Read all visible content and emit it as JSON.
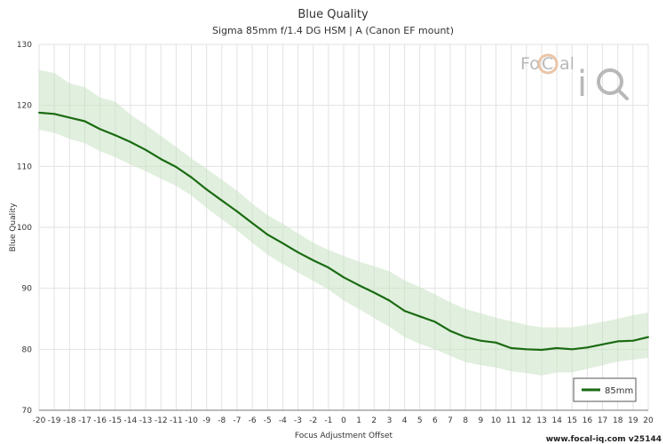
{
  "chart_data": {
    "type": "line",
    "title": "Blue Quality",
    "subtitle": "Sigma 85mm f/1.4 DG HSM | A (Canon EF mount)",
    "xlabel": "Focus Adjustment Offset",
    "ylabel": "Blue Quality",
    "xlim": [
      -20,
      20
    ],
    "ylim": [
      70,
      130
    ],
    "yticks": [
      70,
      80,
      90,
      100,
      110,
      120,
      130
    ],
    "grid": true,
    "legend_position": "bottom-right",
    "x": [
      -20,
      -19,
      -18,
      -17,
      -16,
      -15,
      -14,
      -13,
      -12,
      -11,
      -10,
      -9,
      -8,
      -7,
      -6,
      -5,
      -4,
      -3,
      -2,
      -1,
      0,
      1,
      2,
      3,
      4,
      5,
      6,
      7,
      8,
      9,
      10,
      11,
      12,
      13,
      14,
      15,
      16,
      17,
      18,
      19,
      20
    ],
    "series": [
      {
        "name": "85mm",
        "color": "#1a6b12",
        "band_color": "#c9e2c2",
        "values": [
          118.8,
          118.6,
          118.0,
          117.4,
          116.1,
          115.1,
          114.0,
          112.7,
          111.2,
          109.9,
          108.2,
          106.2,
          104.4,
          102.6,
          100.7,
          98.8,
          97.4,
          95.9,
          94.6,
          93.4,
          91.8,
          90.5,
          89.3,
          88.0,
          86.3,
          85.4,
          84.5,
          83.0,
          82.0,
          81.4,
          81.1,
          80.2,
          80.0,
          79.9,
          80.2,
          80.0,
          80.3,
          80.8,
          81.3,
          81.4,
          82.0
        ],
        "upper": [
          125.8,
          125.3,
          123.6,
          123.0,
          121.3,
          120.6,
          118.5,
          116.8,
          115.0,
          113.2,
          111.3,
          109.6,
          107.8,
          106.0,
          103.9,
          102.0,
          100.6,
          99.0,
          97.5,
          96.3,
          95.3,
          94.4,
          93.6,
          92.8,
          91.3,
          90.2,
          89.0,
          87.7,
          86.6,
          85.9,
          85.2,
          84.6,
          84.0,
          83.6,
          83.6,
          83.6,
          84.0,
          84.5,
          85.0,
          85.6,
          86.0
        ],
        "lower": [
          116.0,
          115.5,
          114.5,
          113.8,
          112.5,
          111.5,
          110.3,
          109.2,
          108.0,
          106.8,
          105.2,
          103.2,
          101.3,
          99.5,
          97.5,
          95.5,
          94.0,
          92.6,
          91.2,
          89.8,
          88.0,
          86.6,
          85.1,
          83.7,
          82.0,
          80.9,
          80.0,
          78.9,
          77.9,
          77.4,
          77.0,
          76.4,
          76.1,
          75.7,
          76.2,
          76.2,
          76.8,
          77.4,
          78.0,
          78.3,
          78.6
        ]
      }
    ]
  },
  "logo": {
    "text": "FoCal iQ"
  },
  "footer": {
    "text": "www.focal-iq.com  v25144"
  }
}
